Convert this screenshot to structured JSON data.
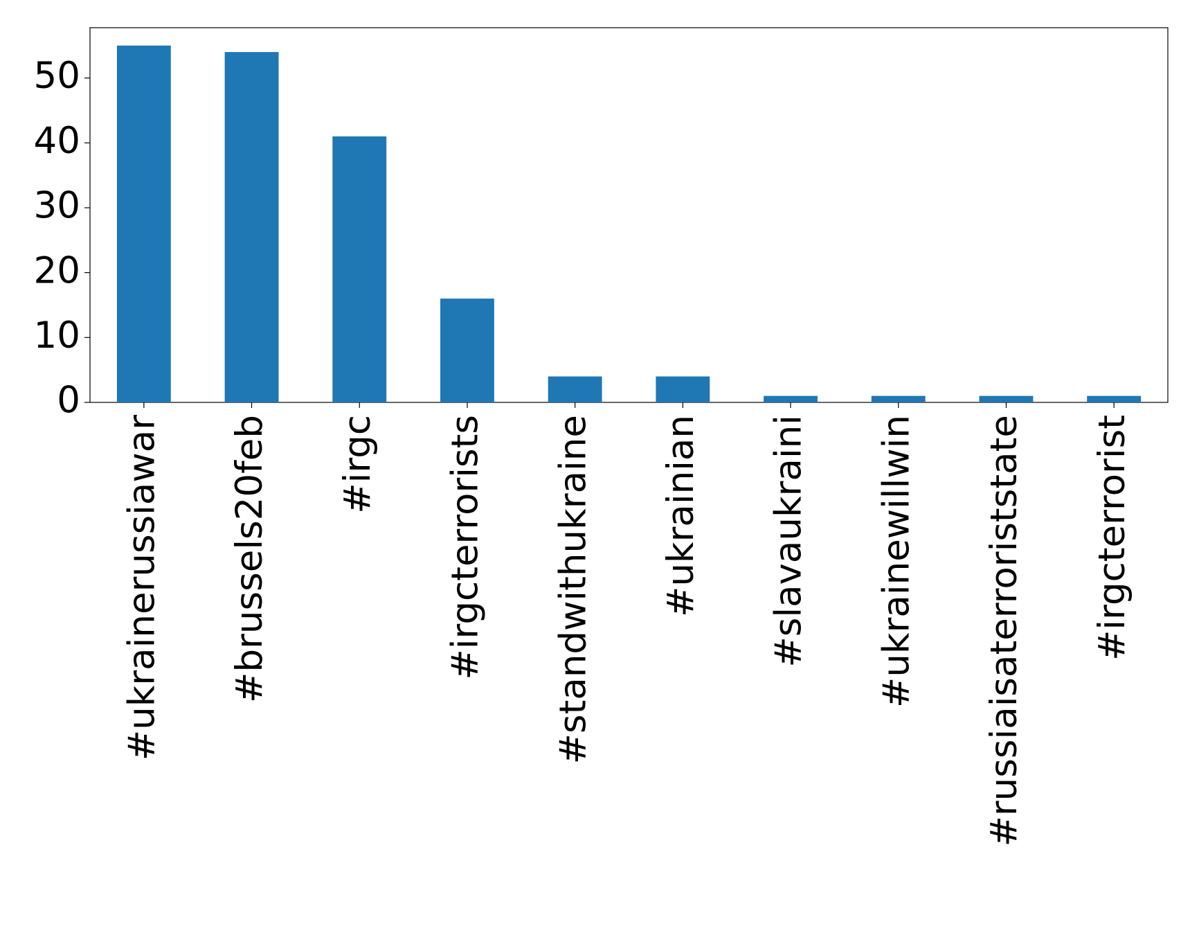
{
  "chart_data": {
    "type": "bar",
    "categories": [
      "#ukrainerussiawar",
      "#brussels20feb",
      "#irgc",
      "#irgcterrorists",
      "#standwithukraine",
      "#ukrainian",
      "#slavaukraini",
      "#ukrainewillwin",
      "#russiaisaterroriststate",
      "#irgcterrorist"
    ],
    "values": [
      55,
      54,
      41,
      16,
      4,
      4,
      1,
      1,
      1,
      1
    ],
    "color": "#1f77b4",
    "ylim": [
      0,
      57.75
    ],
    "yticks": [
      0,
      10,
      20,
      30,
      40,
      50
    ],
    "grid": false
  }
}
